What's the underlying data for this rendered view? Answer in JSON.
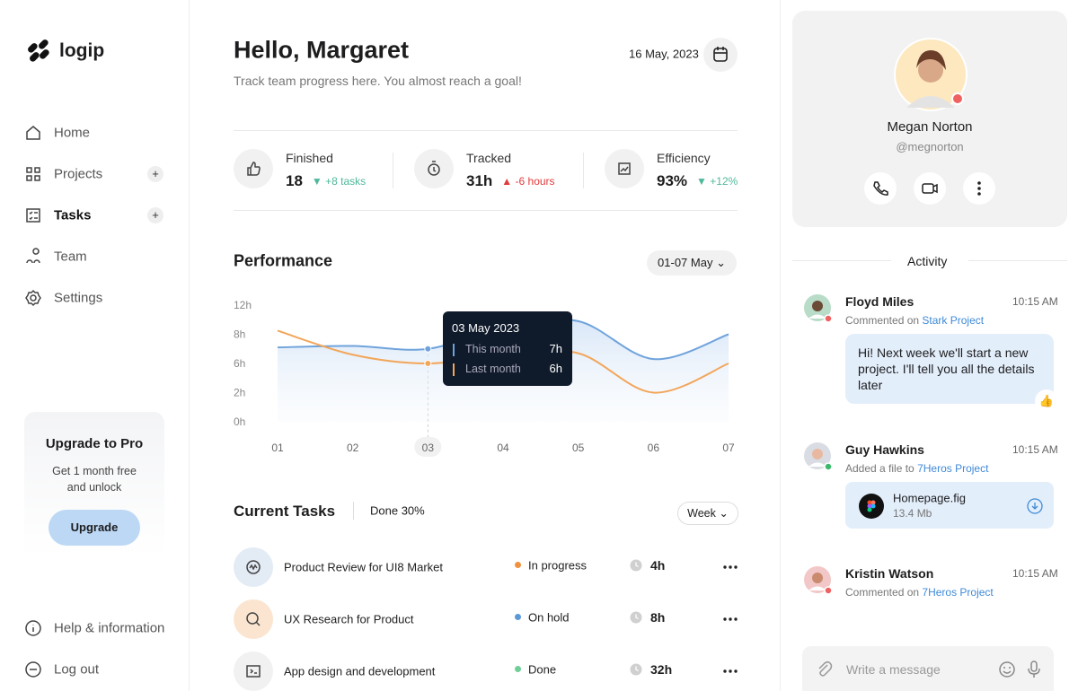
{
  "brand": "logip",
  "nav": [
    "Home",
    "Projects",
    "Tasks",
    "Team",
    "Settings"
  ],
  "upgrade": {
    "title": "Upgrade to Pro",
    "text": "Get 1 month free and unlock",
    "button": "Upgrade"
  },
  "footer_nav": [
    "Help & information",
    "Log out"
  ],
  "header": {
    "greeting": "Hello, Margaret",
    "subtitle": "Track team progress here. You almost reach a goal!",
    "date": "16 May, 2023"
  },
  "stats": [
    {
      "label": "Finished",
      "value": "18",
      "change": "+8 tasks"
    },
    {
      "label": "Tracked",
      "value": "31h",
      "change": "-6 hours"
    },
    {
      "label": "Efficiency",
      "value": "93%",
      "change": "+12%"
    }
  ],
  "performance": {
    "type": "line",
    "title": "Performance",
    "range": "01-07 May",
    "categories": [
      "01",
      "02",
      "03",
      "04",
      "05",
      "06",
      "07"
    ],
    "yticks": [
      {
        "value": 12,
        "label": "12h"
      },
      {
        "value": 8,
        "label": "8h"
      },
      {
        "value": 6,
        "label": "6h"
      },
      {
        "value": 2,
        "label": "2h"
      },
      {
        "value": 0,
        "label": "0h"
      }
    ],
    "series": [
      {
        "name": "This month",
        "color": "#6fa3dc",
        "values": [
          7.1,
          7.2,
          7,
          9,
          9.8,
          6.3,
          8
        ]
      },
      {
        "name": "Last month",
        "color": "#f2a65a",
        "values": [
          8.5,
          6.6,
          6,
          6.6,
          6.7,
          2,
          6
        ]
      }
    ],
    "tooltip": {
      "title": "03 May 2023",
      "values": [
        "7h",
        "6h"
      ]
    }
  },
  "tasks": {
    "title": "Current Tasks",
    "progress": "Done 30%",
    "filter": "Week",
    "rows": [
      {
        "name": "Product Review for UI8 Market",
        "status": "In progress",
        "time": "4h"
      },
      {
        "name": "UX Research for Product",
        "status": "On hold",
        "time": "8h"
      },
      {
        "name": "App design and development",
        "status": "Done",
        "time": "32h"
      }
    ]
  },
  "profile": {
    "name": "Megan Norton",
    "handle": "@megnorton"
  },
  "activity": {
    "title": "Activity",
    "items": [
      {
        "name": "Floyd Miles",
        "time": "10:15 AM",
        "action": "Commented on",
        "project": "Stark Project",
        "message": "Hi! Next week we'll start a new project. I'll tell you all the details later"
      },
      {
        "name": "Guy Hawkins",
        "time": "10:15 AM",
        "action": "Added a file to",
        "project": "7Heros Project",
        "file": {
          "name": "Homepage.fig",
          "size": "13.4 Mb"
        }
      },
      {
        "name": "Kristin Watson",
        "time": "10:15 AM",
        "action": "Commented on",
        "project": "7Heros Project"
      }
    ]
  },
  "composer": {
    "placeholder": "Write a message"
  }
}
